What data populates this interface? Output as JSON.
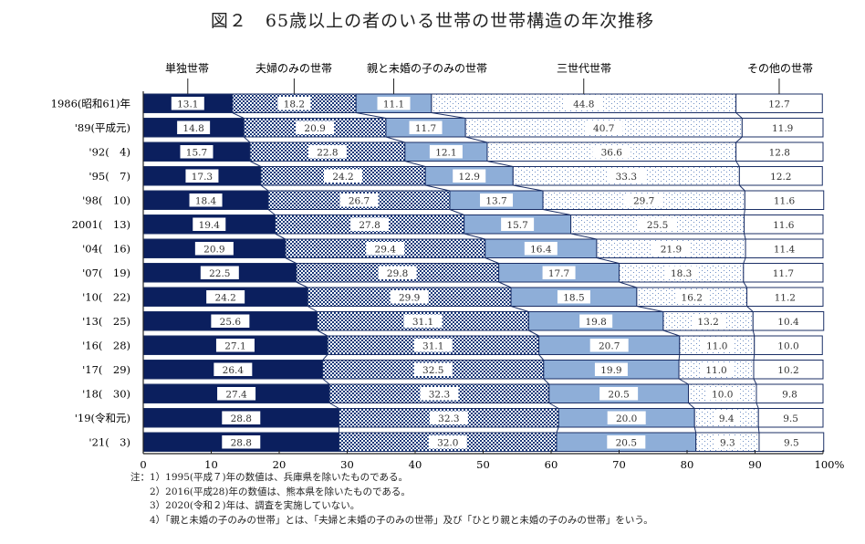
{
  "chart_data": {
    "type": "bar",
    "orientation": "horizontal",
    "stacked": true,
    "title": "図２　65歳以上の者のいる世帯の世帯構造の年次推移",
    "categories": [
      "1986(昭和61)年",
      "'89(平成元)",
      "'92(　4)",
      "'95(　7)",
      "'98(　10)",
      "2001(　13)",
      "'04(　16)",
      "'07(　19)",
      "'10(　22)",
      "'13(　25)",
      "'16(　28)",
      "'17(　29)",
      "'18(　30)",
      "'19(令和元)",
      "'21(　3)"
    ],
    "series": [
      {
        "name": "単独世帯",
        "pattern": "solid-dark",
        "color": "#0b1f5e",
        "values": [
          13.1,
          14.8,
          15.7,
          17.3,
          18.4,
          19.4,
          20.9,
          22.5,
          24.2,
          25.6,
          27.1,
          26.4,
          27.4,
          28.8,
          28.8
        ]
      },
      {
        "name": "夫婦のみの世帯",
        "pattern": "checker",
        "color": "#1b3a7a",
        "values": [
          18.2,
          20.9,
          22.8,
          24.2,
          26.7,
          27.8,
          29.4,
          29.8,
          29.9,
          31.1,
          31.1,
          32.5,
          32.3,
          32.3,
          32.0
        ]
      },
      {
        "name": "親と未婚の子のみの世帯",
        "pattern": "solid-light",
        "color": "#8eaed8",
        "values": [
          11.1,
          11.7,
          12.1,
          12.9,
          13.7,
          15.7,
          16.4,
          17.7,
          18.5,
          19.8,
          20.7,
          19.9,
          20.5,
          20.0,
          20.5
        ]
      },
      {
        "name": "三世代世帯",
        "pattern": "dots",
        "color": "#6f8fc4",
        "values": [
          44.8,
          40.7,
          36.6,
          33.3,
          29.7,
          25.5,
          21.9,
          18.3,
          16.2,
          13.2,
          11.0,
          11.0,
          10.0,
          9.4,
          9.3
        ]
      },
      {
        "name": "その他の世帯",
        "pattern": "white",
        "color": "#ffffff",
        "values": [
          12.7,
          11.9,
          12.8,
          12.2,
          11.6,
          11.6,
          11.4,
          11.7,
          11.2,
          10.4,
          10.0,
          10.2,
          9.8,
          9.5,
          9.5
        ]
      }
    ],
    "xlim": [
      0,
      100
    ],
    "xticks": [
      "0",
      "10",
      "20",
      "30",
      "40",
      "50",
      "60",
      "70",
      "80",
      "90",
      "100%"
    ],
    "legend": "top",
    "grid": false
  },
  "notes": [
    "注：1）1995(平成７)年の数値は、兵庫県を除いたものである。",
    "　　2）2016(平成28)年の数値は、熊本県を除いたものである。",
    "　　3）2020(令和２)年は、調査を実施していない。",
    "　　4）「親と未婚の子のみの世帯」とは、「夫婦と未婚の子のみの世帯」及び「ひとり親と未婚の子のみの世帯」をいう。"
  ]
}
